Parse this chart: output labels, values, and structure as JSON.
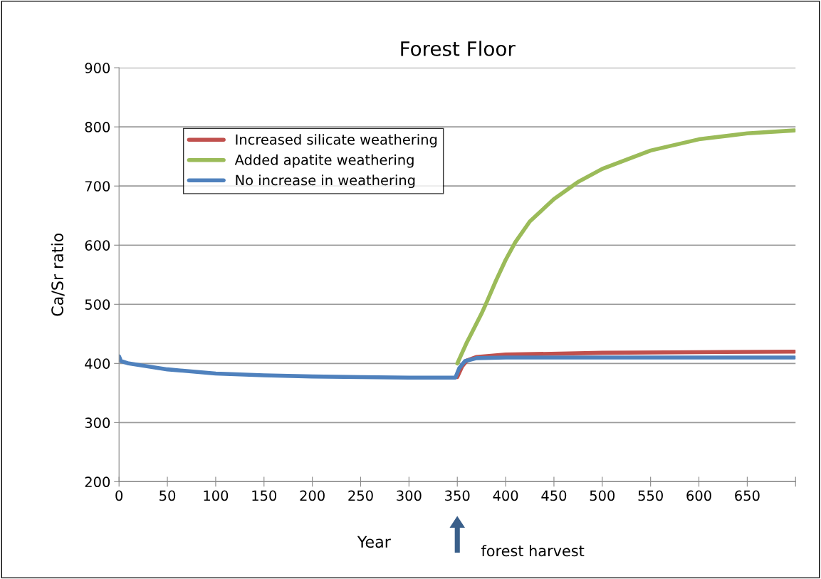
{
  "chart_data": {
    "type": "line",
    "title": "Forest Floor",
    "xlabel": "Year",
    "ylabel": "Ca/Sr ratio",
    "xlim": [
      0,
      700
    ],
    "xticks": [
      0,
      50,
      100,
      150,
      200,
      250,
      300,
      350,
      400,
      450,
      500,
      550,
      600,
      650,
      {
        "value": 700,
        "label": null
      }
    ],
    "ylim": [
      200,
      900
    ],
    "yticks": [
      200,
      300,
      400,
      500,
      600,
      700,
      800,
      900
    ],
    "grid": "y",
    "legend": "top left",
    "line_style": "solid",
    "annotations": [
      "forest harvest"
    ],
    "series": [
      {
        "name": "Increased silicate weathering",
        "color": "#c0504d",
        "x": [
          350,
          355,
          360,
          370,
          400,
          500,
          600,
          699
        ],
        "values": [
          377,
          395,
          405,
          411,
          415,
          418,
          419,
          420
        ]
      },
      {
        "name": "Added apatite weathering",
        "color": "#9bbb59",
        "x": [
          350,
          355,
          360,
          365,
          375,
          380,
          390,
          400,
          410,
          425,
          450,
          475,
          500,
          550,
          600,
          650,
          699
        ],
        "values": [
          400,
          418,
          436,
          452,
          484,
          502,
          540,
          575,
          605,
          640,
          678,
          707,
          729,
          760,
          779,
          789,
          794
        ]
      },
      {
        "name": "No increase in weathering",
        "color": "#4f81bd",
        "x": [
          0,
          2,
          10,
          50,
          100,
          150,
          200,
          250,
          300,
          348,
          352,
          358,
          370,
          400,
          699
        ],
        "values": [
          412,
          404,
          400,
          390,
          383,
          380,
          378,
          377,
          376,
          376,
          392,
          404,
          409,
          410,
          410
        ]
      }
    ]
  }
}
